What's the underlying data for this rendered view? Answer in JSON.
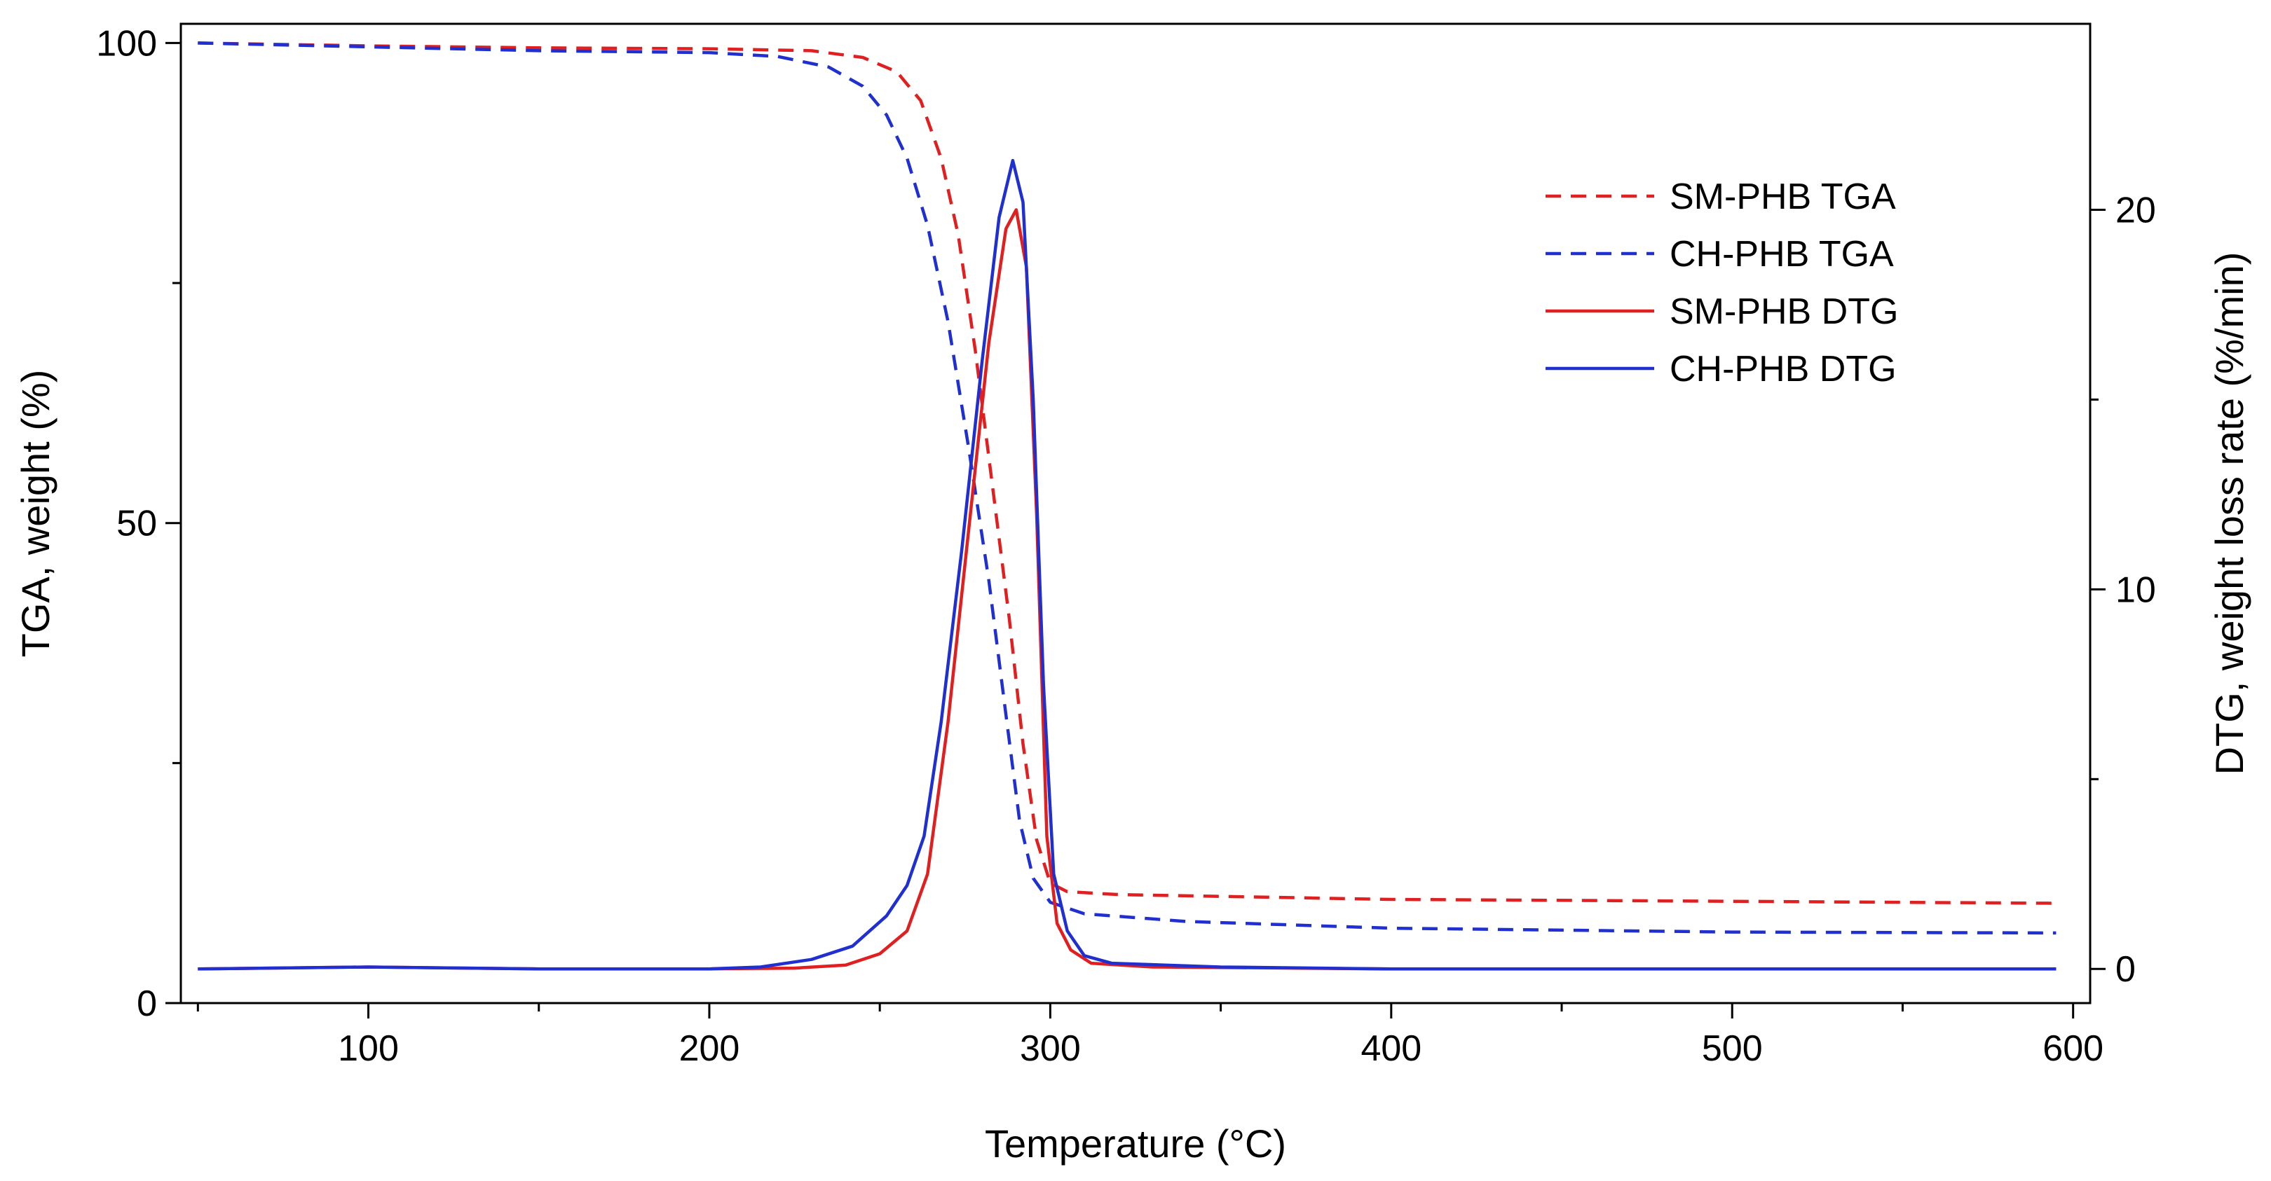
{
  "chart_data": {
    "type": "line",
    "title": "",
    "xlabel": "Temperature (°C)",
    "ylabel_left": "TGA, weight (%)",
    "ylabel_right": "DTG, weight loss rate (%/min)",
    "xlim": [
      45,
      605
    ],
    "ylim_left": [
      0,
      102
    ],
    "ylim_right": [
      -0.9,
      24.9
    ],
    "x_ticks": [
      100,
      200,
      300,
      400,
      500,
      600
    ],
    "y_left_ticks": [
      0,
      50,
      100
    ],
    "y_right_ticks": [
      0,
      10,
      20
    ],
    "grid": false,
    "legend_position": "top-right",
    "series": [
      {
        "name": "SM-PHB TGA",
        "axis": "left",
        "style": "dashed",
        "color": "#e02020",
        "points": [
          [
            50,
            100
          ],
          [
            100,
            99.7
          ],
          [
            150,
            99.5
          ],
          [
            200,
            99.4
          ],
          [
            230,
            99.2
          ],
          [
            245,
            98.5
          ],
          [
            255,
            97
          ],
          [
            262,
            94
          ],
          [
            268,
            88
          ],
          [
            273,
            80
          ],
          [
            278,
            68
          ],
          [
            283,
            54
          ],
          [
            288,
            40
          ],
          [
            292,
            27
          ],
          [
            296,
            17
          ],
          [
            300,
            12.5
          ],
          [
            305,
            11.6
          ],
          [
            320,
            11.3
          ],
          [
            400,
            10.8
          ],
          [
            500,
            10.6
          ],
          [
            595,
            10.4
          ]
        ]
      },
      {
        "name": "CH-PHB TGA",
        "axis": "left",
        "style": "dashed",
        "color": "#2030d0",
        "points": [
          [
            50,
            100
          ],
          [
            100,
            99.6
          ],
          [
            150,
            99.2
          ],
          [
            200,
            99
          ],
          [
            220,
            98.6
          ],
          [
            235,
            97.5
          ],
          [
            245,
            95.5
          ],
          [
            252,
            92.5
          ],
          [
            258,
            88
          ],
          [
            264,
            81
          ],
          [
            270,
            71
          ],
          [
            276,
            58
          ],
          [
            282,
            44
          ],
          [
            287,
            30
          ],
          [
            291,
            19
          ],
          [
            295,
            13
          ],
          [
            300,
            10.5
          ],
          [
            310,
            9.3
          ],
          [
            340,
            8.5
          ],
          [
            400,
            7.8
          ],
          [
            500,
            7.4
          ],
          [
            595,
            7.3
          ]
        ]
      },
      {
        "name": "SM-PHB DTG",
        "axis": "right",
        "style": "solid",
        "color": "#e02020",
        "points": [
          [
            50,
            0
          ],
          [
            100,
            0.05
          ],
          [
            150,
            0
          ],
          [
            200,
            0
          ],
          [
            225,
            0.02
          ],
          [
            240,
            0.1
          ],
          [
            250,
            0.4
          ],
          [
            258,
            1.0
          ],
          [
            264,
            2.5
          ],
          [
            270,
            6.5
          ],
          [
            276,
            11.5
          ],
          [
            282,
            16.5
          ],
          [
            287,
            19.5
          ],
          [
            290,
            20
          ],
          [
            293,
            18.5
          ],
          [
            296,
            12
          ],
          [
            299,
            3.5
          ],
          [
            302,
            1.2
          ],
          [
            306,
            0.5
          ],
          [
            312,
            0.15
          ],
          [
            330,
            0.05
          ],
          [
            400,
            0
          ],
          [
            500,
            0
          ],
          [
            595,
            0
          ]
        ]
      },
      {
        "name": "CH-PHB DTG",
        "axis": "right",
        "style": "solid",
        "color": "#2030d0",
        "points": [
          [
            50,
            0
          ],
          [
            100,
            0.05
          ],
          [
            150,
            0
          ],
          [
            200,
            0
          ],
          [
            215,
            0.05
          ],
          [
            230,
            0.25
          ],
          [
            242,
            0.6
          ],
          [
            252,
            1.4
          ],
          [
            258,
            2.2
          ],
          [
            263,
            3.5
          ],
          [
            268,
            6.5
          ],
          [
            274,
            11
          ],
          [
            280,
            16
          ],
          [
            285,
            19.8
          ],
          [
            289,
            21.3
          ],
          [
            292,
            20.2
          ],
          [
            295,
            15
          ],
          [
            298,
            7.5
          ],
          [
            301,
            2.5
          ],
          [
            305,
            1.0
          ],
          [
            310,
            0.35
          ],
          [
            318,
            0.15
          ],
          [
            350,
            0.05
          ],
          [
            400,
            0
          ],
          [
            500,
            0
          ],
          [
            595,
            0
          ]
        ]
      }
    ]
  }
}
